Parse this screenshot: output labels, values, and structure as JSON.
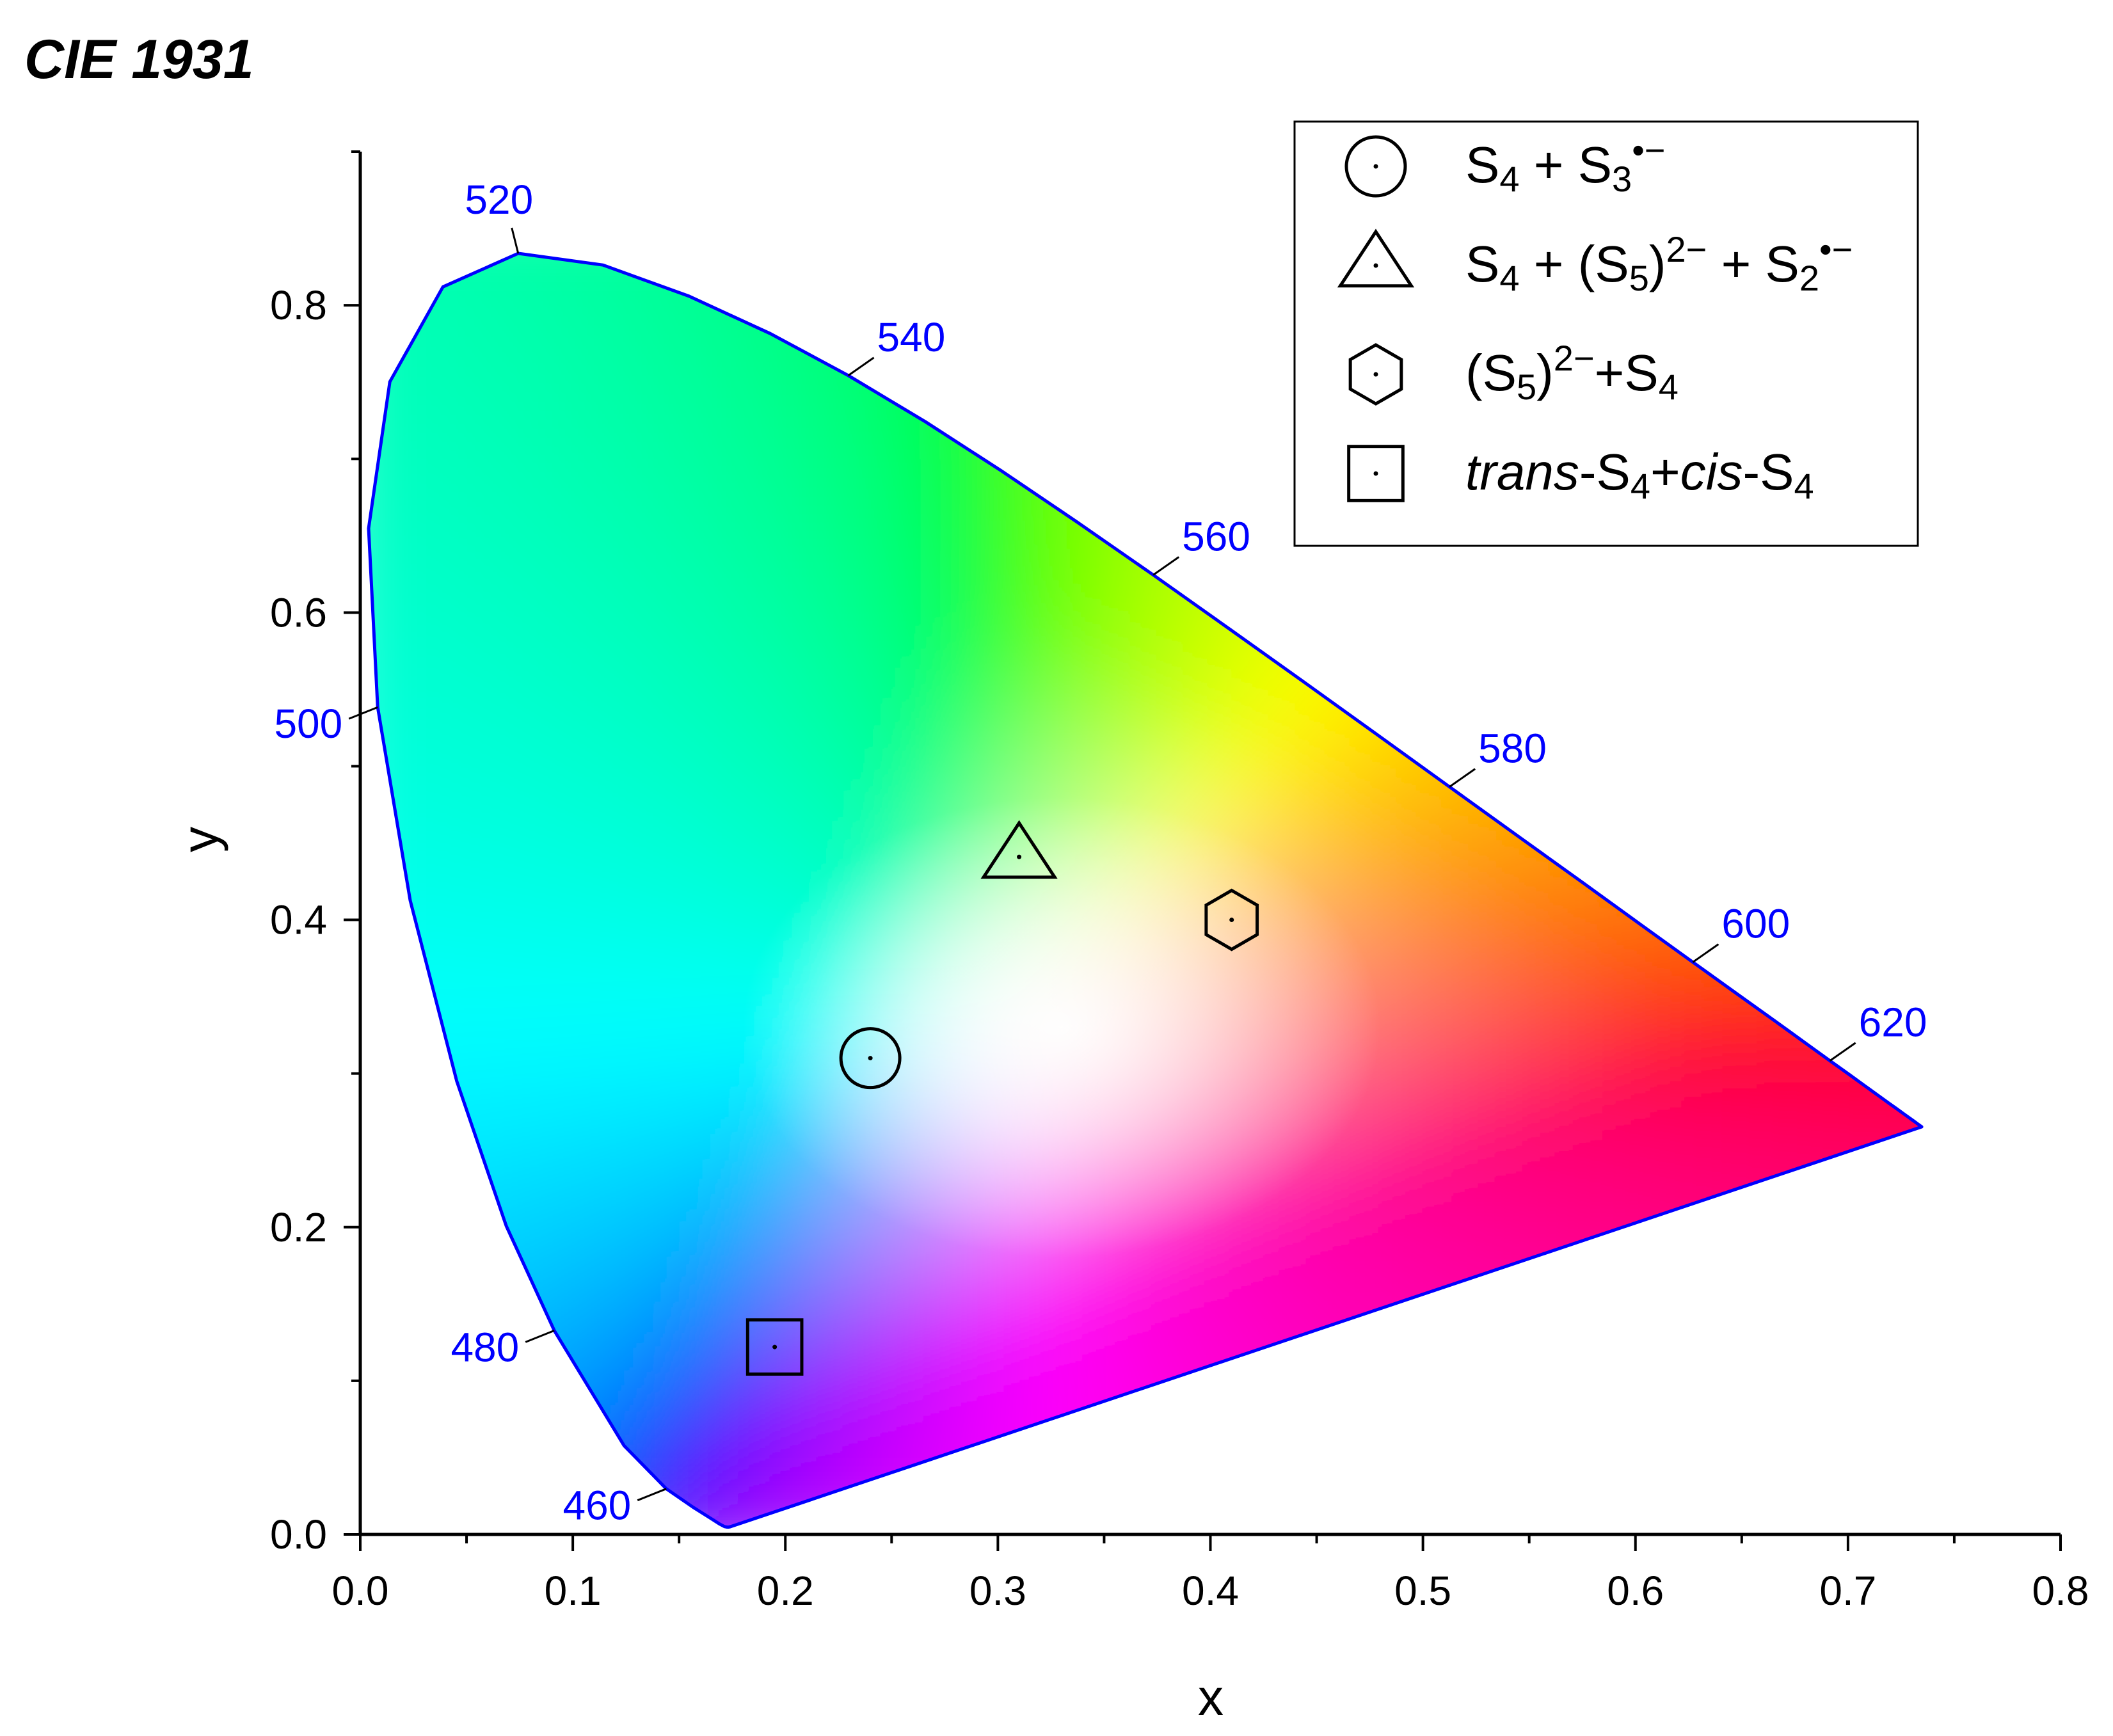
{
  "chart_data": {
    "type": "scatter",
    "title": "CIE 1931",
    "xlabel": "x",
    "ylabel": "y",
    "xlim": [
      0.0,
      0.8
    ],
    "ylim": [
      0.0,
      0.9
    ],
    "x_ticks": [
      "0.0",
      "0.1",
      "0.2",
      "0.3",
      "0.4",
      "0.5",
      "0.6",
      "0.7",
      "0.8"
    ],
    "y_ticks": [
      "0.0",
      "0.2",
      "0.4",
      "0.6",
      "0.8"
    ],
    "grid": false,
    "legend_position": "top-right",
    "spectral_locus_color": "#0000ff",
    "spectral_locus": [
      [
        0.1741,
        0.005
      ],
      [
        0.1733,
        0.0048
      ],
      [
        0.1726,
        0.0048
      ],
      [
        0.1714,
        0.0051
      ],
      [
        0.1689,
        0.0069
      ],
      [
        0.1644,
        0.0109
      ],
      [
        0.1566,
        0.0177
      ],
      [
        0.144,
        0.0297
      ],
      [
        0.1241,
        0.0578
      ],
      [
        0.0913,
        0.1327
      ],
      [
        0.0687,
        0.2007
      ],
      [
        0.0454,
        0.295
      ],
      [
        0.0235,
        0.4127
      ],
      [
        0.0082,
        0.5384
      ],
      [
        0.0039,
        0.6548
      ],
      [
        0.0139,
        0.7502
      ],
      [
        0.0389,
        0.812
      ],
      [
        0.0743,
        0.8338
      ],
      [
        0.1142,
        0.8262
      ],
      [
        0.1547,
        0.8059
      ],
      [
        0.1929,
        0.7816
      ],
      [
        0.2296,
        0.7543
      ],
      [
        0.2658,
        0.7243
      ],
      [
        0.3016,
        0.6923
      ],
      [
        0.3373,
        0.6589
      ],
      [
        0.3731,
        0.6245
      ],
      [
        0.4087,
        0.5896
      ],
      [
        0.4441,
        0.5547
      ],
      [
        0.4788,
        0.5202
      ],
      [
        0.5125,
        0.4866
      ],
      [
        0.5448,
        0.4544
      ],
      [
        0.5752,
        0.4242
      ],
      [
        0.6029,
        0.3965
      ],
      [
        0.627,
        0.3725
      ],
      [
        0.6482,
        0.3514
      ],
      [
        0.6658,
        0.334
      ],
      [
        0.6801,
        0.3197
      ],
      [
        0.6915,
        0.3083
      ],
      [
        0.7006,
        0.2993
      ],
      [
        0.7079,
        0.292
      ],
      [
        0.714,
        0.2859
      ],
      [
        0.719,
        0.2809
      ],
      [
        0.723,
        0.277
      ],
      [
        0.726,
        0.274
      ],
      [
        0.7283,
        0.2717
      ],
      [
        0.73,
        0.27
      ],
      [
        0.7311,
        0.2689
      ],
      [
        0.732,
        0.268
      ],
      [
        0.7327,
        0.2673
      ],
      [
        0.7334,
        0.2666
      ],
      [
        0.734,
        0.266
      ],
      [
        0.7344,
        0.2656
      ],
      [
        0.7346,
        0.2654
      ],
      [
        0.7347,
        0.2653
      ]
    ],
    "wavelength_labels": [
      {
        "label": "460",
        "x": 0.144,
        "y": 0.0297,
        "side": "left"
      },
      {
        "label": "480",
        "x": 0.0913,
        "y": 0.1327,
        "side": "left"
      },
      {
        "label": "500",
        "x": 0.0082,
        "y": 0.5384,
        "side": "left"
      },
      {
        "label": "520",
        "x": 0.0743,
        "y": 0.8338,
        "side": "top"
      },
      {
        "label": "540",
        "x": 0.2296,
        "y": 0.7543,
        "side": "right"
      },
      {
        "label": "560",
        "x": 0.3731,
        "y": 0.6245,
        "side": "right"
      },
      {
        "label": "580",
        "x": 0.5125,
        "y": 0.4866,
        "side": "right"
      },
      {
        "label": "600",
        "x": 0.627,
        "y": 0.3725,
        "side": "right"
      },
      {
        "label": "620",
        "x": 0.6915,
        "y": 0.3083,
        "side": "right"
      }
    ],
    "series": [
      {
        "marker": "circle",
        "x": 0.24,
        "y": 0.31,
        "legend": {
          "parts": [
            [
              "S",
              ""
            ],
            [
              "4",
              "sub"
            ],
            [
              " + S",
              ""
            ],
            [
              "3",
              "sub"
            ],
            [
              "•−",
              "sup"
            ]
          ]
        }
      },
      {
        "marker": "triangle",
        "x": 0.31,
        "y": 0.441,
        "legend": {
          "parts": [
            [
              "S",
              ""
            ],
            [
              "4",
              "sub"
            ],
            [
              " + (S",
              ""
            ],
            [
              "5",
              "sub"
            ],
            [
              ")",
              ""
            ],
            [
              "2−",
              "sup"
            ],
            [
              " + S",
              ""
            ],
            [
              "2",
              "sub"
            ],
            [
              "•−",
              "sup"
            ]
          ]
        }
      },
      {
        "marker": "hexagon",
        "x": 0.41,
        "y": 0.4,
        "legend": {
          "parts": [
            [
              "(S",
              ""
            ],
            [
              "5",
              "sub"
            ],
            [
              ")",
              ""
            ],
            [
              "2−",
              "sup"
            ],
            [
              "+S",
              ""
            ],
            [
              "4",
              "sub"
            ]
          ]
        }
      },
      {
        "marker": "square",
        "x": 0.195,
        "y": 0.122,
        "legend": {
          "parts": [
            [
              "trans",
              "italic"
            ],
            [
              "-S",
              ""
            ],
            [
              "4",
              "sub"
            ],
            [
              "+",
              ""
            ],
            [
              "cis",
              "italic"
            ],
            [
              "-S",
              ""
            ],
            [
              "4",
              "sub"
            ]
          ]
        }
      }
    ]
  }
}
